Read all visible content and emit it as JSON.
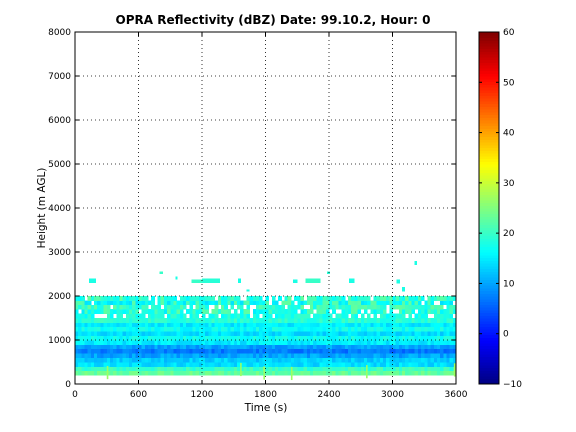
{
  "chart_data": {
    "type": "heatmap",
    "title": "OPRA Reflectivity (dBZ)  Date: 99.10.2, Hour: 0",
    "xlabel": "Time (s)",
    "ylabel": "Height (m AGL)",
    "xlim": [
      0,
      3600
    ],
    "ylim": [
      0,
      8000
    ],
    "xticks": [
      0,
      600,
      1200,
      1800,
      2400,
      3000,
      3600
    ],
    "yticks": [
      0,
      1000,
      2000,
      3000,
      4000,
      5000,
      6000,
      7000,
      8000
    ],
    "grid": true,
    "colormap": "jet",
    "colorbar": {
      "range": [
        -10,
        60
      ],
      "ticks": [
        -10,
        0,
        10,
        20,
        30,
        40,
        50,
        60
      ],
      "tick_labels": [
        "−10",
        "0",
        "10",
        "20",
        "30",
        "40",
        "50",
        "60"
      ]
    },
    "profile": {
      "description_source": "approximate reflectivity per height layer",
      "heights_m": [
        250,
        350,
        450,
        550,
        650,
        750,
        850,
        950,
        1050,
        1150,
        1250,
        1350,
        1450,
        1550,
        1650,
        1750,
        1850,
        1950
      ],
      "dbz": [
        23,
        20,
        14,
        13,
        10,
        7,
        10,
        15,
        17,
        14,
        17,
        15,
        19,
        18,
        17,
        19,
        16,
        18
      ]
    },
    "sparse_echoes": [
      {
        "t": [
          130,
          200
        ],
        "h": [
          2300,
          2400
        ],
        "dbz": 18
      },
      {
        "t": [
          800,
          830
        ],
        "h": [
          2500,
          2560
        ],
        "dbz": 20
      },
      {
        "t": [
          950,
          970
        ],
        "h": [
          2380,
          2440
        ],
        "dbz": 18
      },
      {
        "t": [
          1100,
          1200
        ],
        "h": [
          2300,
          2380
        ],
        "dbz": 20
      },
      {
        "t": [
          1200,
          1370
        ],
        "h": [
          2300,
          2400
        ],
        "dbz": 19
      },
      {
        "t": [
          1540,
          1570
        ],
        "h": [
          2300,
          2400
        ],
        "dbz": 18
      },
      {
        "t": [
          1620,
          1650
        ],
        "h": [
          2100,
          2150
        ],
        "dbz": 18
      },
      {
        "t": [
          2060,
          2100
        ],
        "h": [
          2300,
          2380
        ],
        "dbz": 18
      },
      {
        "t": [
          2180,
          2320
        ],
        "h": [
          2300,
          2400
        ],
        "dbz": 20
      },
      {
        "t": [
          2380,
          2410
        ],
        "h": [
          2500,
          2560
        ],
        "dbz": 19
      },
      {
        "t": [
          2590,
          2640
        ],
        "h": [
          2300,
          2400
        ],
        "dbz": 18
      },
      {
        "t": [
          3040,
          3070
        ],
        "h": [
          2280,
          2380
        ],
        "dbz": 18
      },
      {
        "t": [
          3210,
          3230
        ],
        "h": [
          2700,
          2800
        ],
        "dbz": 18
      },
      {
        "t": [
          3090,
          3120
        ],
        "h": [
          2100,
          2200
        ],
        "dbz": 18
      }
    ]
  }
}
